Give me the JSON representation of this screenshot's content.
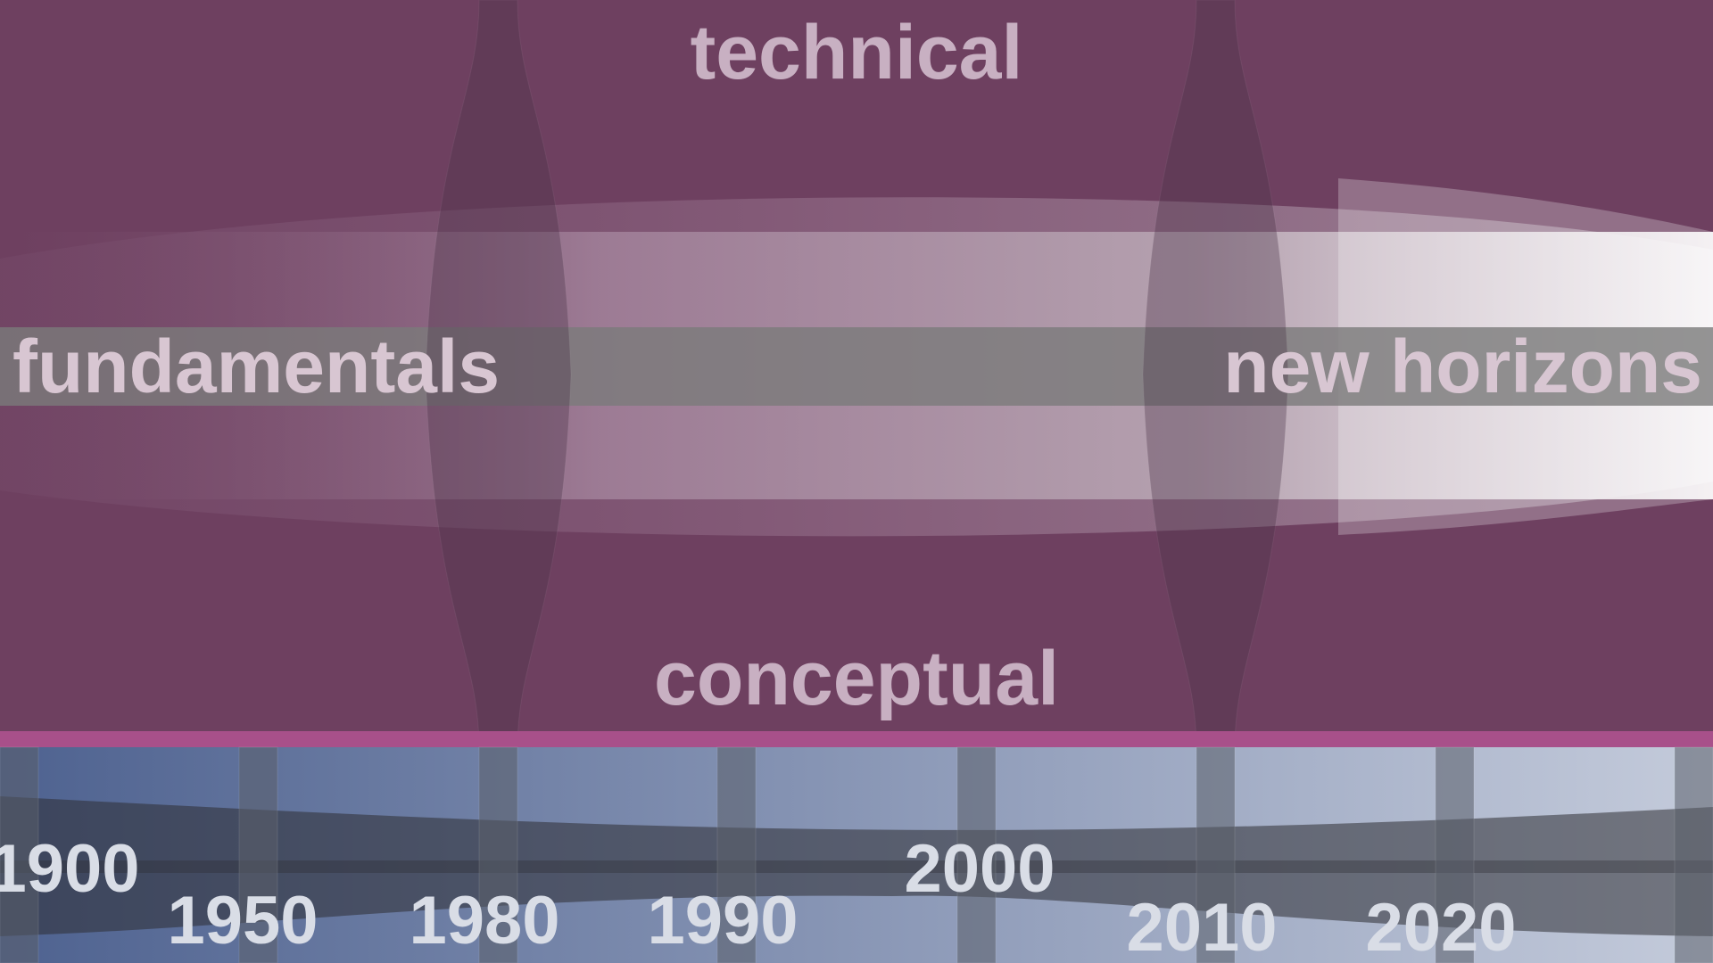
{
  "labels": {
    "top": "technical",
    "bottom": "conceptual",
    "left": "fundamentals",
    "right": "new horizons"
  },
  "timeline": {
    "years": [
      "1900",
      "1950",
      "1980",
      "1990",
      "2000",
      "2010",
      "2020"
    ]
  },
  "colors": {
    "background": "#6e4060",
    "separator": "#a8508a",
    "timeline_start": "#4e6290",
    "timeline_end": "#c4cbdb",
    "band_start": "#7a5a72",
    "band_end": "#ffffff"
  }
}
